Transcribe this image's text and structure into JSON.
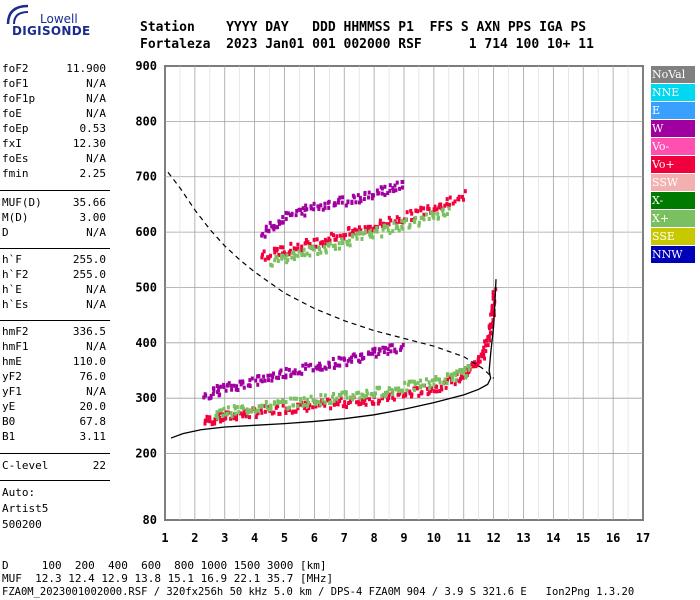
{
  "logo": {
    "line1": "Lowell",
    "line2": "DIGISONDE"
  },
  "header": {
    "labels_line": "Station    YYYY DAY   DDD HHMMSS P1  FFS S AXN PPS IGA PS",
    "values_line": "Fortaleza  2023 Jan01 001 002000 RSF      1 714 100 10+ 11"
  },
  "params": {
    "group1": [
      {
        "label": "foF2",
        "value": "11.900"
      },
      {
        "label": "foF1",
        "value": "N/A"
      },
      {
        "label": "foF1p",
        "value": "N/A"
      },
      {
        "label": "foE",
        "value": "N/A"
      },
      {
        "label": "foEp",
        "value": "0.53"
      },
      {
        "label": "fxI",
        "value": "12.30"
      },
      {
        "label": "foEs",
        "value": "N/A"
      },
      {
        "label": "fmin",
        "value": "2.25"
      }
    ],
    "group2": [
      {
        "label": "MUF(D)",
        "value": "35.66"
      },
      {
        "label": "M(D)",
        "value": "3.00"
      },
      {
        "label": "D",
        "value": "N/A"
      }
    ],
    "group3": [
      {
        "label": "h`F",
        "value": "255.0"
      },
      {
        "label": "h`F2",
        "value": "255.0"
      },
      {
        "label": "h`E",
        "value": "N/A"
      },
      {
        "label": "h`Es",
        "value": "N/A"
      }
    ],
    "group4": [
      {
        "label": "hmF2",
        "value": "336.5"
      },
      {
        "label": "hmF1",
        "value": "N/A"
      },
      {
        "label": "hmE",
        "value": "110.0"
      },
      {
        "label": "yF2",
        "value": "76.0"
      },
      {
        "label": "yF1",
        "value": "N/A"
      },
      {
        "label": "yE",
        "value": "20.0"
      },
      {
        "label": "B0",
        "value": "67.8"
      },
      {
        "label": "B1",
        "value": "3.11"
      }
    ],
    "clevel": {
      "label": "C-level",
      "value": "22"
    },
    "auto": [
      "Auto:",
      "Artist5",
      "500200"
    ]
  },
  "legend": [
    {
      "label": "NoVal",
      "color": "#808080"
    },
    {
      "label": "NNE",
      "color": "#00d8f0"
    },
    {
      "label": "E",
      "color": "#3aa0ff"
    },
    {
      "label": "W",
      "color": "#a000a0"
    },
    {
      "label": "Vo-",
      "color": "#ff4fb0"
    },
    {
      "label": "Vo+",
      "color": "#f0003c"
    },
    {
      "label": "SSW",
      "color": "#f4b0b0"
    },
    {
      "label": "X-",
      "color": "#007a00"
    },
    {
      "label": "X+",
      "color": "#7ac060"
    },
    {
      "label": "SSE",
      "color": "#c8c800"
    },
    {
      "label": "NNW",
      "color": "#0000b8"
    }
  ],
  "footer": {
    "d_line": "D     100  200  400  600  800 1000 1500 3000 [km]",
    "muf_line": "MUF  12.3 12.4 12.9 13.8 15.1 16.9 22.1 35.7 [MHz]",
    "file_line": "FZA0M_2023001002000.RSF / 320fx256h 50 kHz 5.0 km / DPS-4 FZA0M 904 / 3.9 S 321.6 E   Ion2Png 1.3.20"
  },
  "chart_data": {
    "type": "scatter",
    "xlim": [
      1,
      17
    ],
    "ylim": [
      80,
      900
    ],
    "x_ticks": [
      1,
      2,
      3,
      4,
      5,
      6,
      7,
      8,
      9,
      10,
      11,
      12,
      13,
      14,
      15,
      16,
      17
    ],
    "y_ticks": [
      80,
      200,
      300,
      400,
      500,
      600,
      700,
      800,
      900
    ],
    "grid": true,
    "traces": {
      "profile_solid": [
        [
          1.2,
          228
        ],
        [
          1.6,
          236
        ],
        [
          2.2,
          243
        ],
        [
          3,
          248
        ],
        [
          4,
          251
        ],
        [
          5,
          254
        ],
        [
          6,
          258
        ],
        [
          7,
          263
        ],
        [
          8,
          270
        ],
        [
          9,
          280
        ],
        [
          10,
          292
        ],
        [
          11,
          306
        ],
        [
          11.5,
          316
        ],
        [
          11.8,
          325
        ],
        [
          11.9,
          336
        ],
        [
          11.85,
          350
        ],
        [
          11.9,
          380
        ],
        [
          12,
          430
        ],
        [
          12.05,
          480
        ],
        [
          12.08,
          515
        ]
      ],
      "muf_dashed": [
        [
          1.1,
          708
        ],
        [
          1.5,
          680
        ],
        [
          2,
          640
        ],
        [
          2.5,
          605
        ],
        [
          3,
          575
        ],
        [
          3.5,
          550
        ],
        [
          4,
          528
        ],
        [
          5,
          490
        ],
        [
          6,
          462
        ],
        [
          7,
          440
        ],
        [
          8,
          422
        ],
        [
          9,
          408
        ],
        [
          10,
          394
        ],
        [
          11,
          375
        ],
        [
          11.6,
          355
        ],
        [
          12,
          336
        ]
      ]
    },
    "echo_bands": [
      {
        "mode": "Vo+",
        "color": "#f0003c",
        "pts": [
          [
            2.3,
            262
          ],
          [
            3,
            270
          ],
          [
            4,
            278
          ],
          [
            5,
            285
          ],
          [
            6,
            290
          ],
          [
            7,
            296
          ],
          [
            8,
            302
          ],
          [
            9,
            310
          ],
          [
            10,
            322
          ],
          [
            11,
            345
          ],
          [
            11.6,
            380
          ],
          [
            11.9,
            440
          ],
          [
            12,
            500
          ]
        ]
      },
      {
        "mode": "X+",
        "color": "#7ac060",
        "pts": [
          [
            2.6,
            275
          ],
          [
            3.5,
            283
          ],
          [
            4.5,
            290
          ],
          [
            5.5,
            297
          ],
          [
            6.5,
            303
          ],
          [
            7.5,
            310
          ],
          [
            8.5,
            318
          ],
          [
            9.5,
            328
          ],
          [
            10.5,
            340
          ],
          [
            11.2,
            355
          ]
        ]
      },
      {
        "mode": "W",
        "color": "#a000a0",
        "pts": [
          [
            2.3,
            310
          ],
          [
            3,
            322
          ],
          [
            4,
            335
          ],
          [
            5,
            350
          ],
          [
            6,
            360
          ],
          [
            7,
            372
          ],
          [
            8,
            385
          ],
          [
            9,
            398
          ]
        ]
      },
      {
        "mode": "Vo+",
        "color": "#f0003c",
        "pts": [
          [
            4.2,
            560
          ],
          [
            5,
            572
          ],
          [
            6,
            585
          ],
          [
            7,
            600
          ],
          [
            8,
            615
          ],
          [
            9,
            630
          ],
          [
            10,
            650
          ],
          [
            11,
            670
          ]
        ]
      },
      {
        "mode": "X+",
        "color": "#7ac060",
        "pts": [
          [
            4.5,
            550
          ],
          [
            5.5,
            565
          ],
          [
            6.5,
            578
          ],
          [
            7.5,
            595
          ],
          [
            8.5,
            610
          ],
          [
            9.5,
            625
          ],
          [
            10.5,
            645
          ]
        ]
      },
      {
        "mode": "W",
        "color": "#a000a0",
        "pts": [
          [
            4.2,
            600
          ],
          [
            5,
            630
          ],
          [
            6,
            650
          ],
          [
            7,
            660
          ],
          [
            8,
            675
          ],
          [
            9,
            690
          ]
        ]
      }
    ]
  }
}
